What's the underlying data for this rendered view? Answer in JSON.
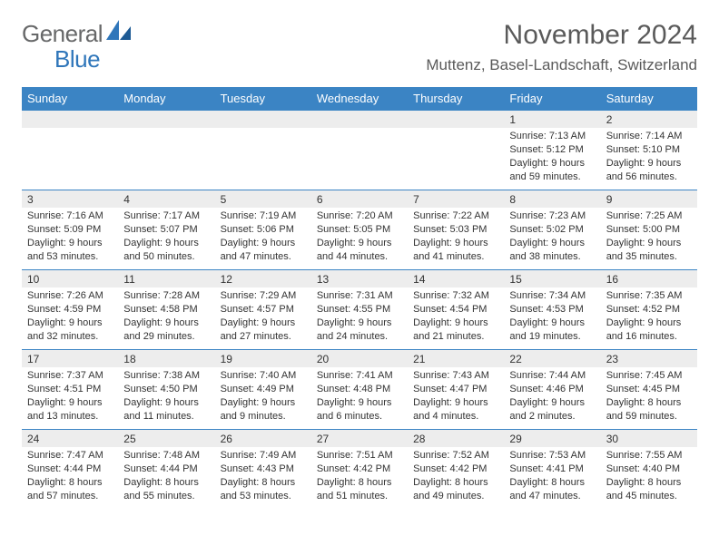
{
  "brand": {
    "general": "General",
    "blue": "Blue"
  },
  "title": "November 2024",
  "subtitle": "Muttenz, Basel-Landschaft, Switzerland",
  "colors": {
    "header_bg": "#3b84c4",
    "header_text": "#ffffff",
    "daynum_bg": "#ededed",
    "row_border": "#3b84c4",
    "text": "#333333",
    "logo_gray": "#676869",
    "logo_blue": "#2f76ba",
    "page_bg": "#ffffff"
  },
  "fonts": {
    "title_size": 30,
    "subtitle_size": 17,
    "header_size": 13,
    "body_size": 11
  },
  "weekdays": [
    "Sunday",
    "Monday",
    "Tuesday",
    "Wednesday",
    "Thursday",
    "Friday",
    "Saturday"
  ],
  "weeks": [
    [
      null,
      null,
      null,
      null,
      null,
      {
        "n": "1",
        "sunrise": "Sunrise: 7:13 AM",
        "sunset": "Sunset: 5:12 PM",
        "dl1": "Daylight: 9 hours",
        "dl2": "and 59 minutes."
      },
      {
        "n": "2",
        "sunrise": "Sunrise: 7:14 AM",
        "sunset": "Sunset: 5:10 PM",
        "dl1": "Daylight: 9 hours",
        "dl2": "and 56 minutes."
      }
    ],
    [
      {
        "n": "3",
        "sunrise": "Sunrise: 7:16 AM",
        "sunset": "Sunset: 5:09 PM",
        "dl1": "Daylight: 9 hours",
        "dl2": "and 53 minutes."
      },
      {
        "n": "4",
        "sunrise": "Sunrise: 7:17 AM",
        "sunset": "Sunset: 5:07 PM",
        "dl1": "Daylight: 9 hours",
        "dl2": "and 50 minutes."
      },
      {
        "n": "5",
        "sunrise": "Sunrise: 7:19 AM",
        "sunset": "Sunset: 5:06 PM",
        "dl1": "Daylight: 9 hours",
        "dl2": "and 47 minutes."
      },
      {
        "n": "6",
        "sunrise": "Sunrise: 7:20 AM",
        "sunset": "Sunset: 5:05 PM",
        "dl1": "Daylight: 9 hours",
        "dl2": "and 44 minutes."
      },
      {
        "n": "7",
        "sunrise": "Sunrise: 7:22 AM",
        "sunset": "Sunset: 5:03 PM",
        "dl1": "Daylight: 9 hours",
        "dl2": "and 41 minutes."
      },
      {
        "n": "8",
        "sunrise": "Sunrise: 7:23 AM",
        "sunset": "Sunset: 5:02 PM",
        "dl1": "Daylight: 9 hours",
        "dl2": "and 38 minutes."
      },
      {
        "n": "9",
        "sunrise": "Sunrise: 7:25 AM",
        "sunset": "Sunset: 5:00 PM",
        "dl1": "Daylight: 9 hours",
        "dl2": "and 35 minutes."
      }
    ],
    [
      {
        "n": "10",
        "sunrise": "Sunrise: 7:26 AM",
        "sunset": "Sunset: 4:59 PM",
        "dl1": "Daylight: 9 hours",
        "dl2": "and 32 minutes."
      },
      {
        "n": "11",
        "sunrise": "Sunrise: 7:28 AM",
        "sunset": "Sunset: 4:58 PM",
        "dl1": "Daylight: 9 hours",
        "dl2": "and 29 minutes."
      },
      {
        "n": "12",
        "sunrise": "Sunrise: 7:29 AM",
        "sunset": "Sunset: 4:57 PM",
        "dl1": "Daylight: 9 hours",
        "dl2": "and 27 minutes."
      },
      {
        "n": "13",
        "sunrise": "Sunrise: 7:31 AM",
        "sunset": "Sunset: 4:55 PM",
        "dl1": "Daylight: 9 hours",
        "dl2": "and 24 minutes."
      },
      {
        "n": "14",
        "sunrise": "Sunrise: 7:32 AM",
        "sunset": "Sunset: 4:54 PM",
        "dl1": "Daylight: 9 hours",
        "dl2": "and 21 minutes."
      },
      {
        "n": "15",
        "sunrise": "Sunrise: 7:34 AM",
        "sunset": "Sunset: 4:53 PM",
        "dl1": "Daylight: 9 hours",
        "dl2": "and 19 minutes."
      },
      {
        "n": "16",
        "sunrise": "Sunrise: 7:35 AM",
        "sunset": "Sunset: 4:52 PM",
        "dl1": "Daylight: 9 hours",
        "dl2": "and 16 minutes."
      }
    ],
    [
      {
        "n": "17",
        "sunrise": "Sunrise: 7:37 AM",
        "sunset": "Sunset: 4:51 PM",
        "dl1": "Daylight: 9 hours",
        "dl2": "and 13 minutes."
      },
      {
        "n": "18",
        "sunrise": "Sunrise: 7:38 AM",
        "sunset": "Sunset: 4:50 PM",
        "dl1": "Daylight: 9 hours",
        "dl2": "and 11 minutes."
      },
      {
        "n": "19",
        "sunrise": "Sunrise: 7:40 AM",
        "sunset": "Sunset: 4:49 PM",
        "dl1": "Daylight: 9 hours",
        "dl2": "and 9 minutes."
      },
      {
        "n": "20",
        "sunrise": "Sunrise: 7:41 AM",
        "sunset": "Sunset: 4:48 PM",
        "dl1": "Daylight: 9 hours",
        "dl2": "and 6 minutes."
      },
      {
        "n": "21",
        "sunrise": "Sunrise: 7:43 AM",
        "sunset": "Sunset: 4:47 PM",
        "dl1": "Daylight: 9 hours",
        "dl2": "and 4 minutes."
      },
      {
        "n": "22",
        "sunrise": "Sunrise: 7:44 AM",
        "sunset": "Sunset: 4:46 PM",
        "dl1": "Daylight: 9 hours",
        "dl2": "and 2 minutes."
      },
      {
        "n": "23",
        "sunrise": "Sunrise: 7:45 AM",
        "sunset": "Sunset: 4:45 PM",
        "dl1": "Daylight: 8 hours",
        "dl2": "and 59 minutes."
      }
    ],
    [
      {
        "n": "24",
        "sunrise": "Sunrise: 7:47 AM",
        "sunset": "Sunset: 4:44 PM",
        "dl1": "Daylight: 8 hours",
        "dl2": "and 57 minutes."
      },
      {
        "n": "25",
        "sunrise": "Sunrise: 7:48 AM",
        "sunset": "Sunset: 4:44 PM",
        "dl1": "Daylight: 8 hours",
        "dl2": "and 55 minutes."
      },
      {
        "n": "26",
        "sunrise": "Sunrise: 7:49 AM",
        "sunset": "Sunset: 4:43 PM",
        "dl1": "Daylight: 8 hours",
        "dl2": "and 53 minutes."
      },
      {
        "n": "27",
        "sunrise": "Sunrise: 7:51 AM",
        "sunset": "Sunset: 4:42 PM",
        "dl1": "Daylight: 8 hours",
        "dl2": "and 51 minutes."
      },
      {
        "n": "28",
        "sunrise": "Sunrise: 7:52 AM",
        "sunset": "Sunset: 4:42 PM",
        "dl1": "Daylight: 8 hours",
        "dl2": "and 49 minutes."
      },
      {
        "n": "29",
        "sunrise": "Sunrise: 7:53 AM",
        "sunset": "Sunset: 4:41 PM",
        "dl1": "Daylight: 8 hours",
        "dl2": "and 47 minutes."
      },
      {
        "n": "30",
        "sunrise": "Sunrise: 7:55 AM",
        "sunset": "Sunset: 4:40 PM",
        "dl1": "Daylight: 8 hours",
        "dl2": "and 45 minutes."
      }
    ]
  ]
}
